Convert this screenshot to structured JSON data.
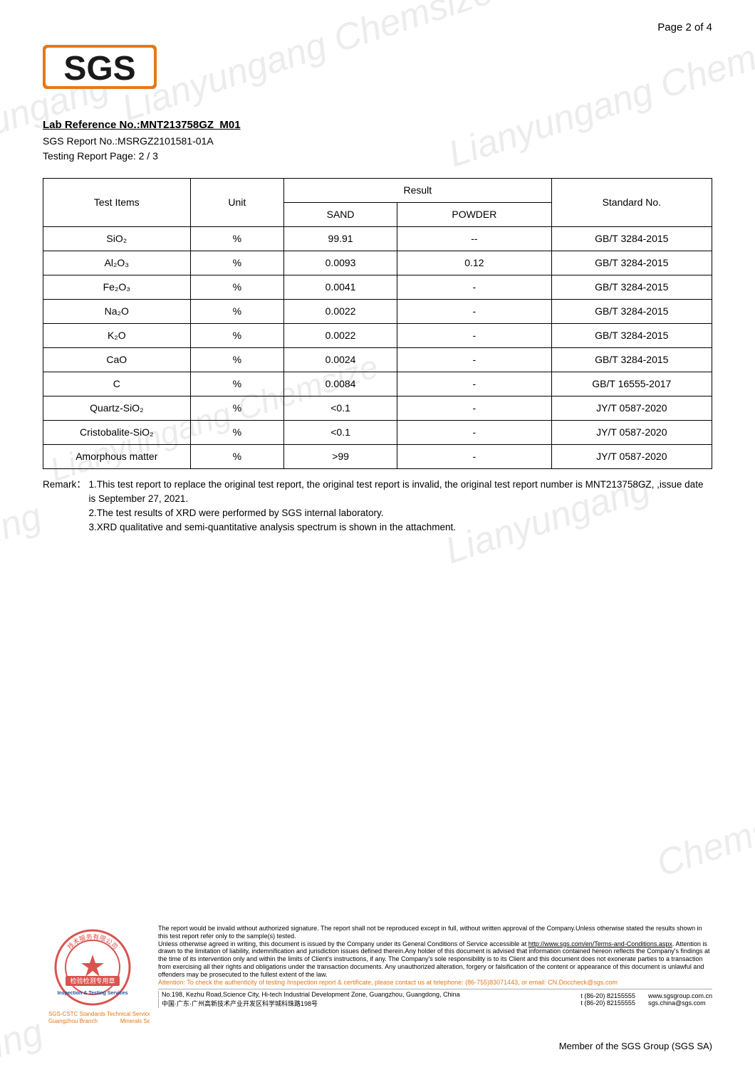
{
  "page_number": "Page 2 of 4",
  "logo_text": "SGS",
  "watermarks": [
    "Lianyungang Chemsize",
    "Lianyungang Chems",
    "Lianyungang",
    "anyungang",
    "anyung",
    "nyung",
    "nyung",
    "Chems"
  ],
  "header": {
    "lab_ref_label": "Lab Reference No.:MNT213758GZ_M01",
    "sgs_report": "SGS Report No.:MSRGZ2101581-01A",
    "testing_page": "Testing Report Page: 2 / 3"
  },
  "table": {
    "headers": {
      "test_items": "Test Items",
      "unit": "Unit",
      "result": "Result",
      "sand": "SAND",
      "powder": "POWDER",
      "standard": "Standard No."
    },
    "rows": [
      {
        "item": "SiO₂",
        "unit": "%",
        "sand": "99.91",
        "powder": "--",
        "std": "GB/T 3284-2015"
      },
      {
        "item": "Al₂O₃",
        "unit": "%",
        "sand": "0.0093",
        "powder": "0.12",
        "std": "GB/T 3284-2015"
      },
      {
        "item": "Fe₂O₃",
        "unit": "%",
        "sand": "0.0041",
        "powder": "-",
        "std": "GB/T 3284-2015"
      },
      {
        "item": "Na₂O",
        "unit": "%",
        "sand": "0.0022",
        "powder": "-",
        "std": "GB/T 3284-2015"
      },
      {
        "item": "K₂O",
        "unit": "%",
        "sand": "0.0022",
        "powder": "-",
        "std": "GB/T 3284-2015"
      },
      {
        "item": "CaO",
        "unit": "%",
        "sand": "0.0024",
        "powder": "-",
        "std": "GB/T 3284-2015"
      },
      {
        "item": "C",
        "unit": "%",
        "sand": "0.0084",
        "powder": "-",
        "std": "GB/T 16555-2017"
      },
      {
        "item": "Quartz-SiO₂",
        "unit": "%",
        "sand": "<0.1",
        "powder": "-",
        "std": "JY/T 0587-2020"
      },
      {
        "item": "Cristobalite-SiO₂",
        "unit": "%",
        "sand": "<0.1",
        "powder": "-",
        "std": "JY/T 0587-2020"
      },
      {
        "item": "Amorphous matter",
        "unit": "%",
        "sand": ">99",
        "powder": "-",
        "std": "JY/T 0587-2020"
      }
    ]
  },
  "remark": {
    "label": "Remark：",
    "line1": "1.This test report to replace the original test report, the original test report is invalid, the original test report number is MNT213758GZ, ,issue date is September 27, 2021.",
    "line2": "2.The test results of XRD were performed by SGS internal laboratory.",
    "line3": "3.XRD qualitative and semi-quantitative analysis spectrum is shown in the attachment."
  },
  "footer": {
    "disclaimer_main": "The report would be invalid without authorized signature. The report shall not be reproduced except in full, without written approval of the Company.Unless otherwise stated the results shown in this test report refer only to the sample(s) tested.",
    "disclaimer_terms_prefix": "Unless otherwise agreed in writing, this document is issued by the Company under its General Conditions of Service accessible at ",
    "disclaimer_terms_link": "http://www.sgs.com/en/Terms-and-Conditions.aspx",
    "disclaimer_terms_suffix": ". Attention is drawn to the limitation of liability, indemnification and jurisdiction issues defined therein.Any holder of this document is advised that information contained hereon reflects the Company's findings at the time of its intervention only and within the limits of Client's instructions, if any. The Company's sole responsibility is to its Client and this document does not exonerate parties to a transaction from exercising all their rights and obligations under the transaction documents. Any unauthorized alteration, forgery or falsification of the content or appearance of this document is unlawful and offenders may be prosecuted to the fullest extent of the law.",
    "attention": "Attention: To check the authenticity of testing /inspection report & certificate, please contact us at telephone: (86-755)83071443, or email: CN.Doccheck@sgs.com",
    "addr_en": "No.198, Kezhu Road,Science City, Hi-tech Industrial Development Zone, Guangzhou, Guangdong, China",
    "addr_cn": "中国·广东·广州高新技术产业开发区科学城科珠路198号",
    "tel1": "t (86-20) 82155555",
    "tel2": "t (86-20) 82155555",
    "web": "www.sgsgroup.com.cn",
    "email": "sgs.china@sgs.com",
    "co_line1": "SGS-CSTC Standards Technical Services Co., Ltd.",
    "co_line2": "Guangzhou Branch　　　　Minerals Service",
    "stamp_text1": "检验检测专用章",
    "stamp_text2": "Inspection & Testing Services",
    "member": "Member of the SGS Group (SGS SA)"
  },
  "colors": {
    "logo_orange": "#e67817",
    "stamp_red": "#d9534f",
    "stamp_blue": "#1c4f9c",
    "text": "#000000",
    "watermark": "rgba(180,180,180,0.25)"
  }
}
